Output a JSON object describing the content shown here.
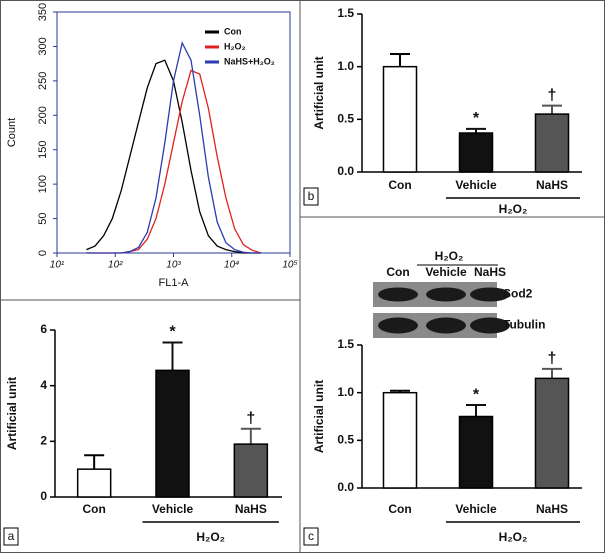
{
  "chart_data": [
    {
      "type": "line",
      "xlabel": "FL1-A",
      "ylabel": "Count",
      "log_x": true,
      "xlim": [
        10,
        100000
      ],
      "xticks": [
        {
          "value": 10,
          "label": "10¹"
        },
        {
          "value": 100,
          "label": "10²"
        },
        {
          "value": 1000,
          "label": "10³"
        },
        {
          "value": 10000,
          "label": "10⁴"
        },
        {
          "value": 100000,
          "label": "10⁵"
        }
      ],
      "ylim": [
        0,
        350
      ],
      "yticks": [
        0,
        50,
        100,
        150,
        200,
        250,
        300,
        350
      ],
      "x": [
        32,
        45,
        63,
        89,
        126,
        178,
        251,
        355,
        501,
        708,
        1000,
        1413,
        1995,
        2818,
        3981,
        5623,
        7943,
        11220,
        15849,
        22387,
        31623
      ],
      "series": [
        {
          "name": "Con",
          "color": "#000000",
          "values": [
            5,
            10,
            25,
            50,
            90,
            140,
            190,
            240,
            275,
            280,
            250,
            190,
            120,
            60,
            25,
            10,
            5,
            2,
            0,
            0,
            0
          ]
        },
        {
          "name": "H₂O₂",
          "color": "#e02020",
          "values": [
            0,
            0,
            0,
            0,
            0,
            2,
            5,
            20,
            50,
            100,
            160,
            220,
            265,
            260,
            210,
            140,
            80,
            35,
            12,
            4,
            0
          ]
        },
        {
          "name": "NaHS+H₂O₂",
          "color": "#2b3bb0",
          "values": [
            0,
            0,
            0,
            0,
            0,
            2,
            8,
            30,
            80,
            160,
            250,
            305,
            280,
            200,
            110,
            45,
            15,
            5,
            1,
            0,
            0
          ]
        }
      ]
    },
    {
      "type": "bar",
      "panel": "b",
      "ylabel": "Artificial unit",
      "group_label": "H₂O₂",
      "categories": [
        "Con",
        "Vehicle",
        "NaHS"
      ],
      "values": [
        1.0,
        0.37,
        0.55
      ],
      "errors": [
        0.12,
        0.04,
        0.08
      ],
      "colors": [
        "#ffffff",
        "#111111",
        "#555555"
      ],
      "annotations": [
        null,
        "*",
        "†"
      ],
      "ylim": [
        0,
        1.5
      ],
      "yticks": [
        {
          "value": 0,
          "label": "0.0"
        },
        {
          "value": 0.5,
          "label": "0.5"
        },
        {
          "value": 1,
          "label": "1.0"
        },
        {
          "value": 1.5,
          "label": "1.5"
        }
      ]
    },
    {
      "type": "bar",
      "panel": "a",
      "ylabel": "Artificial unit",
      "group_label": "H₂O₂",
      "categories": [
        "Con",
        "Vehicle",
        "NaHS"
      ],
      "values": [
        1.0,
        4.55,
        1.9
      ],
      "errors": [
        0.5,
        1.0,
        0.55
      ],
      "colors": [
        "#ffffff",
        "#111111",
        "#555555"
      ],
      "annotations": [
        null,
        "*",
        "†"
      ],
      "ylim": [
        0,
        6
      ],
      "yticks": [
        0,
        2,
        4,
        6
      ]
    },
    {
      "type": "bar",
      "panel": "c",
      "ylabel": "Artificial unit",
      "group_label": "H₂O₂",
      "categories": [
        "Con",
        "Vehicle",
        "NaHS"
      ],
      "values": [
        1.0,
        0.75,
        1.15
      ],
      "errors": [
        0.02,
        0.12,
        0.1
      ],
      "colors": [
        "#ffffff",
        "#111111",
        "#555555"
      ],
      "annotations": [
        null,
        "*",
        "†"
      ],
      "ylim": [
        0,
        1.5
      ],
      "yticks": [
        {
          "value": 0,
          "label": "0.0"
        },
        {
          "value": 0.5,
          "label": "0.5"
        },
        {
          "value": 1,
          "label": "1.0"
        },
        {
          "value": 1.5,
          "label": "1.5"
        }
      ],
      "blot": {
        "group": "H₂O₂",
        "lanes": [
          "Con",
          "Vehicle",
          "NaHS"
        ],
        "rows": [
          "Sod2",
          "Tubulin"
        ]
      }
    }
  ]
}
